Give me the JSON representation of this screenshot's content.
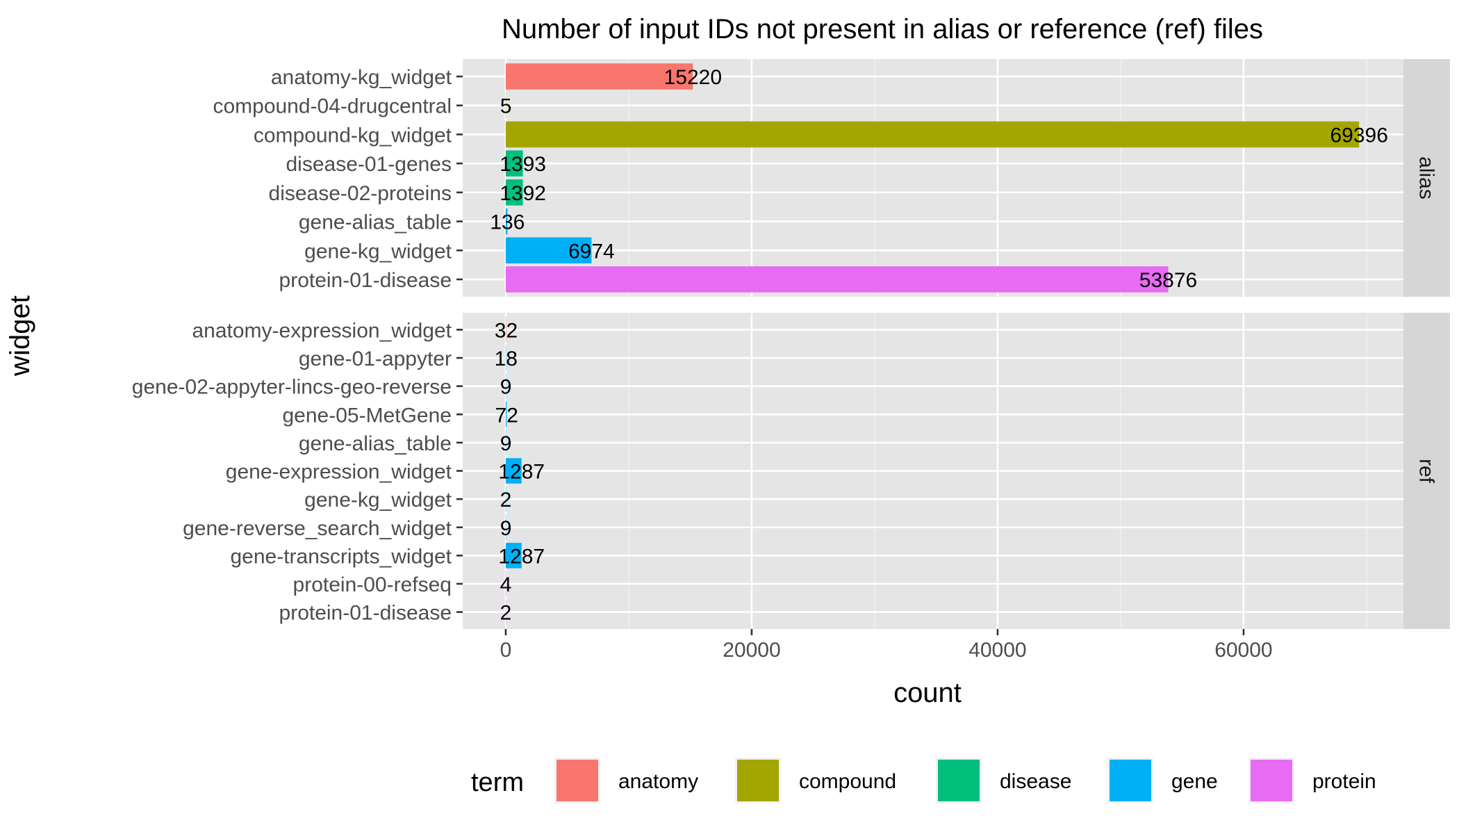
{
  "chart_data": {
    "type": "bar",
    "orientation": "horizontal",
    "title": "Number of input IDs not present in alias or reference (ref) files",
    "xlabel": "count",
    "ylabel": "widget",
    "xlim": [
      -3500,
      73000
    ],
    "x_ticks": [
      0,
      20000,
      40000,
      60000
    ],
    "x_tick_labels": [
      "0",
      "20000",
      "40000",
      "60000"
    ],
    "grid": true,
    "legend": {
      "title": "term",
      "position": "bottom",
      "items": [
        {
          "label": "anatomy",
          "color": "#F8766D"
        },
        {
          "label": "compound",
          "color": "#A3A500"
        },
        {
          "label": "disease",
          "color": "#00BF7D"
        },
        {
          "label": "gene",
          "color": "#00B0F6"
        },
        {
          "label": "protein",
          "color": "#E76BF3"
        }
      ]
    },
    "facets": [
      {
        "strip": "alias",
        "bars": [
          {
            "widget": "protein-01-disease",
            "term": "protein",
            "value": 53876,
            "label": "53876"
          },
          {
            "widget": "gene-kg_widget",
            "term": "gene",
            "value": 6974,
            "label": "6974"
          },
          {
            "widget": "gene-alias_table",
            "term": "gene",
            "value": 136,
            "label": "136"
          },
          {
            "widget": "disease-02-proteins",
            "term": "disease",
            "value": 1392,
            "label": "1392"
          },
          {
            "widget": "disease-01-genes",
            "term": "disease",
            "value": 1393,
            "label": "1393"
          },
          {
            "widget": "compound-kg_widget",
            "term": "compound",
            "value": 69396,
            "label": "69396"
          },
          {
            "widget": "compound-04-drugcentral",
            "term": "compound",
            "value": 5,
            "label": "5"
          },
          {
            "widget": "anatomy-kg_widget",
            "term": "anatomy",
            "value": 15220,
            "label": "15220"
          }
        ]
      },
      {
        "strip": "ref",
        "bars": [
          {
            "widget": "protein-01-disease",
            "term": "protein",
            "value": 2,
            "label": "2"
          },
          {
            "widget": "protein-00-refseq",
            "term": "protein",
            "value": 4,
            "label": "4"
          },
          {
            "widget": "gene-transcripts_widget",
            "term": "gene",
            "value": 1287,
            "label": "1287"
          },
          {
            "widget": "gene-reverse_search_widget",
            "term": "gene",
            "value": 9,
            "label": "9"
          },
          {
            "widget": "gene-kg_widget",
            "term": "gene",
            "value": 2,
            "label": "2"
          },
          {
            "widget": "gene-expression_widget",
            "term": "gene",
            "value": 1287,
            "label": "1287"
          },
          {
            "widget": "gene-alias_table",
            "term": "gene",
            "value": 9,
            "label": "9"
          },
          {
            "widget": "gene-05-MetGene",
            "term": "gene",
            "value": 72,
            "label": "72"
          },
          {
            "widget": "gene-02-appyter-lincs-geo-reverse",
            "term": "gene",
            "value": 9,
            "label": "9"
          },
          {
            "widget": "gene-01-appyter",
            "term": "gene",
            "value": 18,
            "label": "18"
          },
          {
            "widget": "anatomy-expression_widget",
            "term": "anatomy",
            "value": 32,
            "label": "32"
          }
        ]
      }
    ]
  }
}
